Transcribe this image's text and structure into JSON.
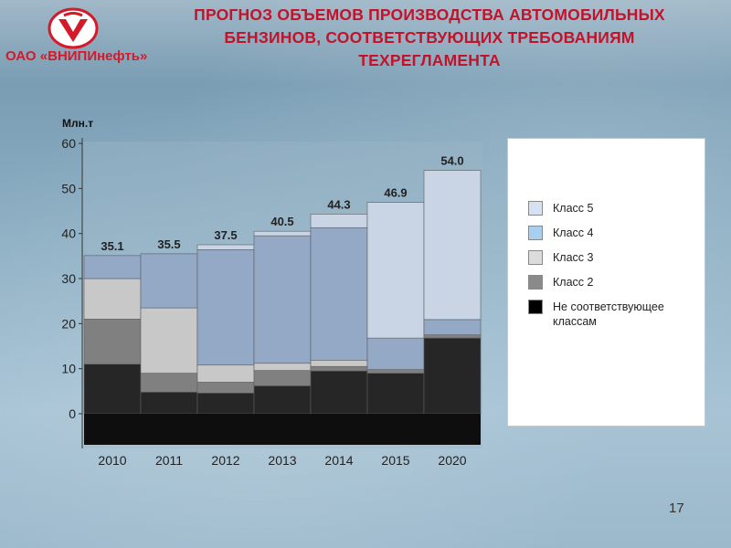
{
  "header": {
    "company": "ОАО «ВНИПИнефть»",
    "title_lines": [
      "ПРОГНОЗ ОБЪЕМОВ ПРОИЗВОДСТВА АВТОМОБИЛЬНЫХ",
      "БЕНЗИНОВ, СООТВЕТСТВУЮЩИХ ТРЕБОВАНИЯМ",
      "ТЕХРЕГЛАМЕНТА"
    ]
  },
  "colors": {
    "title": "#c2132a",
    "klass5": "#c9d5e4",
    "klass4": "#93a9c6",
    "klass3": "#c8c8c8",
    "klass2": "#808080",
    "non": "#262626"
  },
  "chart_data": {
    "type": "bar",
    "stacked": true,
    "ylabel": "Млн.т",
    "ylim": [
      0,
      60
    ],
    "yticks": [
      0,
      10,
      20,
      30,
      40,
      50,
      60
    ],
    "categories": [
      "2010",
      "2011",
      "2012",
      "2013",
      "2014",
      "2015",
      "2020"
    ],
    "totals": [
      35.1,
      35.5,
      37.5,
      40.5,
      44.3,
      46.9,
      54.0
    ],
    "total_labels": [
      "35.1",
      "35.5",
      "37.5",
      "40.5",
      "44.3",
      "46.9",
      "54.0"
    ],
    "series": [
      {
        "name": "Не соответствующее классам",
        "values": [
          11.0,
          4.8,
          4.6,
          6.2,
          9.5,
          9.0,
          16.8
        ],
        "color": "#262626"
      },
      {
        "name": "Класс 2",
        "values": [
          10.0,
          4.2,
          2.4,
          3.4,
          1.0,
          0.8,
          0.7
        ],
        "color": "#808080"
      },
      {
        "name": "Класс 3",
        "values": [
          9.0,
          14.5,
          3.8,
          1.6,
          1.4,
          0.0,
          0.0
        ],
        "color": "#c8c8c8"
      },
      {
        "name": "Класс 4",
        "values": [
          5.1,
          12.0,
          25.6,
          28.3,
          29.4,
          7.0,
          3.4
        ],
        "color": "#93a9c6"
      },
      {
        "name": "Класс 5",
        "values": [
          0.0,
          0.0,
          1.1,
          1.0,
          3.0,
          30.1,
          33.1
        ],
        "color": "#c9d5e4"
      }
    ],
    "legend": {
      "placement": "right",
      "entries": [
        {
          "label": "Класс 5",
          "color": "#d6e2f1"
        },
        {
          "label": "Класс 4",
          "color": "#a8cef0"
        },
        {
          "label": "Класс 3",
          "color": "#dcdcdc"
        },
        {
          "label": "Класс 2",
          "color": "#8a8a8a"
        },
        {
          "label": "Не соответствующее классам",
          "color": "#000000"
        }
      ]
    }
  },
  "page_number": "17"
}
